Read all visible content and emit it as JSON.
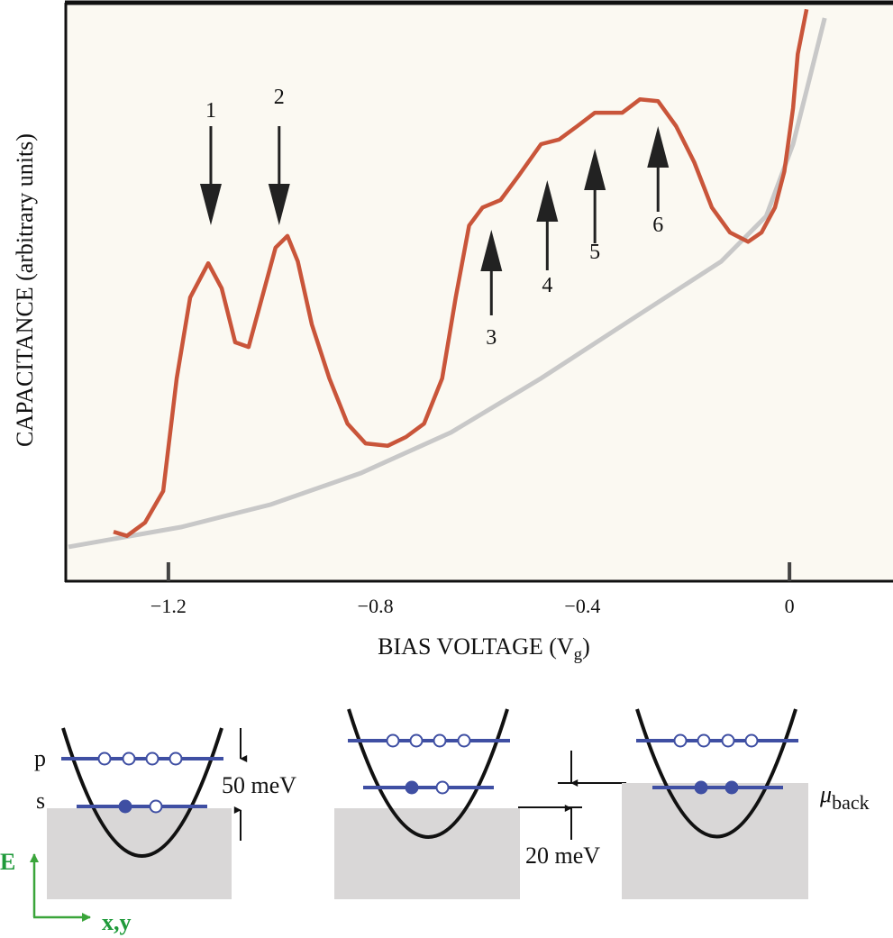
{
  "chart_data": {
    "type": "line",
    "xlabel": "BIAS VOLTAGE (V",
    "xlabel_sub": "g",
    "xlabel_close": ")",
    "ylabel": "CAPACITANCE (arbitrary units)",
    "xlim": [
      -1.4,
      0.2
    ],
    "ylim": [
      0,
      100
    ],
    "xticks": [
      {
        "value": -1.2,
        "label": "−1.2",
        "mark": true
      },
      {
        "value": -0.8,
        "label": "−0.8",
        "mark": false
      },
      {
        "value": -0.4,
        "label": "−0.4",
        "mark": false
      },
      {
        "value": 0,
        "label": "0",
        "mark": true
      }
    ],
    "grid": false,
    "colors": {
      "measured": "#c9553a",
      "background": "#c8c8c8",
      "plot_bg": "#fbf9f2"
    },
    "series": [
      {
        "name": "measured capacitance",
        "x": [
          -1.306,
          -1.28,
          -1.245,
          -1.21,
          -1.184,
          -1.158,
          -1.123,
          -1.097,
          -1.071,
          -1.045,
          -1.019,
          -0.993,
          -0.97,
          -0.95,
          -0.923,
          -0.889,
          -0.854,
          -0.819,
          -0.776,
          -0.741,
          -0.706,
          -0.671,
          -0.645,
          -0.619,
          -0.593,
          -0.558,
          -0.523,
          -0.48,
          -0.445,
          -0.41,
          -0.376,
          -0.323,
          -0.289,
          -0.254,
          -0.219,
          -0.184,
          -0.15,
          -0.115,
          -0.08,
          -0.054,
          -0.028,
          -0.01,
          0.007,
          0.016,
          0.033
        ],
        "y": [
          8.5,
          7.8,
          10.1,
          15.5,
          34.9,
          48.8,
          54.7,
          50.4,
          41.1,
          40.3,
          48.8,
          57.4,
          59.4,
          55.0,
          44.2,
          34.9,
          27.1,
          23.7,
          23.3,
          24.8,
          27.1,
          34.9,
          48.8,
          61.2,
          64.3,
          65.6,
          69.8,
          75.2,
          76.0,
          78.3,
          80.6,
          80.6,
          82.9,
          82.6,
          78.3,
          72.1,
          64.3,
          60.0,
          58.4,
          60.0,
          64.3,
          70.5,
          81.4,
          90.7,
          98.4
        ]
      },
      {
        "name": "background",
        "x": [
          -1.393,
          -1.176,
          -1.002,
          -0.828,
          -0.654,
          -0.48,
          -0.306,
          -0.132,
          -0.045,
          0.007,
          0.042,
          0.068
        ],
        "y": [
          5.9,
          9.3,
          13.2,
          18.6,
          25.6,
          34.9,
          45.0,
          55.0,
          62.8,
          75.2,
          87.6,
          96.9
        ]
      }
    ],
    "annotations": [
      {
        "label": "1",
        "x": -1.118,
        "direction": "down"
      },
      {
        "label": "2",
        "x": -0.986,
        "direction": "down"
      },
      {
        "label": "3",
        "x": -0.576,
        "direction": "up"
      },
      {
        "label": "4",
        "x": -0.468,
        "direction": "up"
      },
      {
        "label": "5",
        "x": -0.376,
        "direction": "up"
      },
      {
        "label": "6",
        "x": -0.254,
        "direction": "up"
      }
    ]
  },
  "diagram": {
    "level_p": "p",
    "level_s": "s",
    "spacing_label": "50 meV",
    "shift_label": "20 meV",
    "mu": "μ",
    "mu_sub": "back",
    "axis_e": "E",
    "axis_xy": "x,y",
    "colors": {
      "level": "#3f4fa3",
      "reservoir": "#d9d7d7",
      "axes": "#1f9a3a"
    }
  }
}
